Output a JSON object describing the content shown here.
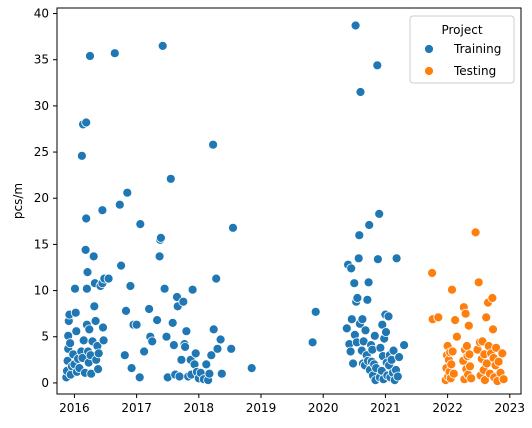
{
  "chart_data": {
    "type": "scatter",
    "title": "",
    "xlabel": "",
    "ylabel": "pcs/m",
    "xlim": [
      2015.72,
      2023.18
    ],
    "ylim": [
      -1.2,
      40.6
    ],
    "x_ticks": [
      2016,
      2017,
      2018,
      2019,
      2020,
      2021,
      2022,
      2023
    ],
    "x_tick_labels": [
      "2016",
      "2017",
      "2018",
      "2019",
      "2020",
      "2021",
      "2022",
      "2023"
    ],
    "y_ticks": [
      0,
      5,
      10,
      15,
      20,
      25,
      30,
      35,
      40
    ],
    "y_tick_labels": [
      "0",
      "5",
      "10",
      "15",
      "20",
      "25",
      "30",
      "35",
      "40"
    ],
    "grid": false,
    "legend": {
      "title": "Project",
      "placement": "top-right",
      "entries": [
        {
          "label": "Training",
          "color": "#1f77b4"
        },
        {
          "label": "Testing",
          "color": "#ff7f0e"
        }
      ]
    },
    "series": [
      {
        "name": "Training",
        "color": "#1f77b4",
        "points": [
          [
            2015.87,
            0.6
          ],
          [
            2015.88,
            1.3
          ],
          [
            2015.89,
            2.4
          ],
          [
            2015.9,
            3.7
          ],
          [
            2015.9,
            5.1
          ],
          [
            2015.91,
            6.7
          ],
          [
            2015.92,
            7.4
          ],
          [
            2015.93,
            4.3
          ],
          [
            2015.94,
            0.9
          ],
          [
            2015.96,
            1.8
          ],
          [
            2015.98,
            3.1
          ],
          [
            2016.0,
            2.0
          ],
          [
            2016.01,
            10.2
          ],
          [
            2016.02,
            7.6
          ],
          [
            2016.03,
            5.6
          ],
          [
            2016.04,
            1.2
          ],
          [
            2016.06,
            2.6
          ],
          [
            2016.08,
            1.6
          ],
          [
            2016.11,
            3.4
          ],
          [
            2016.12,
            24.6
          ],
          [
            2016.13,
            2.7
          ],
          [
            2016.14,
            28.0
          ],
          [
            2016.15,
            4.6
          ],
          [
            2016.17,
            1.1
          ],
          [
            2016.18,
            14.4
          ],
          [
            2016.19,
            17.8
          ],
          [
            2016.19,
            28.2
          ],
          [
            2016.2,
            10.2
          ],
          [
            2016.2,
            6.3
          ],
          [
            2016.21,
            12.0
          ],
          [
            2016.22,
            3.4
          ],
          [
            2016.23,
            2.2
          ],
          [
            2016.24,
            5.8
          ],
          [
            2016.25,
            35.4
          ],
          [
            2016.26,
            3.0
          ],
          [
            2016.27,
            1.0
          ],
          [
            2016.29,
            4.5
          ],
          [
            2016.31,
            13.7
          ],
          [
            2016.32,
            8.3
          ],
          [
            2016.33,
            10.8
          ],
          [
            2016.34,
            6.7
          ],
          [
            2016.35,
            2.5
          ],
          [
            2016.37,
            4.0
          ],
          [
            2016.38,
            1.5
          ],
          [
            2016.39,
            3.2
          ],
          [
            2016.42,
            10.5
          ],
          [
            2016.45,
            18.7
          ],
          [
            2016.45,
            10.8
          ],
          [
            2016.46,
            6.0
          ],
          [
            2016.47,
            4.6
          ],
          [
            2016.48,
            11.3
          ],
          [
            2016.55,
            11.3
          ],
          [
            2016.65,
            35.7
          ],
          [
            2016.73,
            19.3
          ],
          [
            2016.75,
            12.7
          ],
          [
            2016.81,
            3.0
          ],
          [
            2016.83,
            7.8
          ],
          [
            2016.85,
            20.6
          ],
          [
            2016.9,
            10.5
          ],
          [
            2016.92,
            1.6
          ],
          [
            2016.95,
            6.3
          ],
          [
            2017.0,
            6.3
          ],
          [
            2017.05,
            0.6
          ],
          [
            2017.06,
            17.2
          ],
          [
            2017.12,
            3.4
          ],
          [
            2017.2,
            8.0
          ],
          [
            2017.22,
            5.0
          ],
          [
            2017.25,
            4.5
          ],
          [
            2017.33,
            6.8
          ],
          [
            2017.37,
            13.7
          ],
          [
            2017.38,
            15.5
          ],
          [
            2017.39,
            15.7
          ],
          [
            2017.42,
            36.5
          ],
          [
            2017.45,
            10.2
          ],
          [
            2017.48,
            5.0
          ],
          [
            2017.5,
            0.6
          ],
          [
            2017.55,
            22.1
          ],
          [
            2017.58,
            6.5
          ],
          [
            2017.6,
            4.1
          ],
          [
            2017.62,
            0.9
          ],
          [
            2017.65,
            9.3
          ],
          [
            2017.66,
            8.3
          ],
          [
            2017.69,
            0.7
          ],
          [
            2017.72,
            2.5
          ],
          [
            2017.75,
            8.8
          ],
          [
            2017.77,
            4.2
          ],
          [
            2017.78,
            3.9
          ],
          [
            2017.8,
            5.6
          ],
          [
            2017.83,
            0.7
          ],
          [
            2017.87,
            2.5
          ],
          [
            2017.88,
            0.9
          ],
          [
            2017.9,
            10.1
          ],
          [
            2017.93,
            2.0
          ],
          [
            2017.95,
            3.2
          ],
          [
            2017.97,
            1.2
          ],
          [
            2018.0,
            0.5
          ],
          [
            2018.03,
            1.1
          ],
          [
            2018.08,
            0.4
          ],
          [
            2018.12,
            2.0
          ],
          [
            2018.15,
            0.3
          ],
          [
            2018.17,
            1.0
          ],
          [
            2018.2,
            3.0
          ],
          [
            2018.23,
            25.8
          ],
          [
            2018.24,
            5.8
          ],
          [
            2018.28,
            11.3
          ],
          [
            2018.3,
            3.7
          ],
          [
            2018.35,
            4.7
          ],
          [
            2018.37,
            1.0
          ],
          [
            2018.52,
            3.7
          ],
          [
            2018.55,
            16.8
          ],
          [
            2018.85,
            1.6
          ],
          [
            2019.83,
            4.4
          ],
          [
            2019.88,
            7.7
          ],
          [
            2020.38,
            5.9
          ],
          [
            2020.4,
            12.8
          ],
          [
            2020.42,
            4.2
          ],
          [
            2020.44,
            3.4
          ],
          [
            2020.45,
            12.4
          ],
          [
            2020.46,
            6.9
          ],
          [
            2020.48,
            2.1
          ],
          [
            2020.5,
            10.8
          ],
          [
            2020.51,
            5.2
          ],
          [
            2020.52,
            38.7
          ],
          [
            2020.53,
            8.8
          ],
          [
            2020.54,
            4.4
          ],
          [
            2020.55,
            9.2
          ],
          [
            2020.57,
            13.5
          ],
          [
            2020.58,
            16.0
          ],
          [
            2020.59,
            6.4
          ],
          [
            2020.6,
            31.5
          ],
          [
            2020.62,
            3.5
          ],
          [
            2020.63,
            6.9
          ],
          [
            2020.64,
            2.1
          ],
          [
            2020.65,
            4.5
          ],
          [
            2020.67,
            1.9
          ],
          [
            2020.68,
            5.7
          ],
          [
            2020.7,
            3.0
          ],
          [
            2020.71,
            9.0
          ],
          [
            2020.72,
            2.4
          ],
          [
            2020.73,
            10.9
          ],
          [
            2020.74,
            17.1
          ],
          [
            2020.75,
            1.4
          ],
          [
            2020.77,
            4.1
          ],
          [
            2020.78,
            2.3
          ],
          [
            2020.79,
            3.6
          ],
          [
            2020.8,
            0.8
          ],
          [
            2020.82,
            2.0
          ],
          [
            2020.83,
            5.1
          ],
          [
            2020.84,
            0.3
          ],
          [
            2020.85,
            1.6
          ],
          [
            2020.87,
            34.4
          ],
          [
            2020.88,
            13.4
          ],
          [
            2020.9,
            18.3
          ],
          [
            2020.91,
            0.6
          ],
          [
            2020.92,
            3.8
          ],
          [
            2020.94,
            1.3
          ],
          [
            2020.95,
            6.3
          ],
          [
            2020.96,
            2.9
          ],
          [
            2020.97,
            0.4
          ],
          [
            2020.98,
            4.8
          ],
          [
            2021.0,
            7.4
          ],
          [
            2021.01,
            5.5
          ],
          [
            2021.02,
            2.2
          ],
          [
            2021.03,
            0.8
          ],
          [
            2021.05,
            7.2
          ],
          [
            2021.06,
            1.9
          ],
          [
            2021.07,
            3.0
          ],
          [
            2021.08,
            0.6
          ],
          [
            2021.1,
            2.5
          ],
          [
            2021.12,
            1.1
          ],
          [
            2021.13,
            3.5
          ],
          [
            2021.15,
            0.3
          ],
          [
            2021.17,
            1.4
          ],
          [
            2021.18,
            13.5
          ],
          [
            2021.2,
            0.7
          ],
          [
            2021.22,
            2.8
          ],
          [
            2021.3,
            4.1
          ]
        ]
      },
      {
        "name": "Testing",
        "color": "#ff7f0e",
        "points": [
          [
            2021.75,
            11.9
          ],
          [
            2021.76,
            6.9
          ],
          [
            2021.85,
            7.1
          ],
          [
            2021.97,
            0.3
          ],
          [
            2021.98,
            1.6
          ],
          [
            2021.99,
            3.0
          ],
          [
            2022.0,
            4.0
          ],
          [
            2022.01,
            0.7
          ],
          [
            2022.02,
            2.5
          ],
          [
            2022.03,
            1.2
          ],
          [
            2022.04,
            3.3
          ],
          [
            2022.05,
            0.5
          ],
          [
            2022.06,
            2.0
          ],
          [
            2022.07,
            10.1
          ],
          [
            2022.08,
            3.4
          ],
          [
            2022.1,
            1.0
          ],
          [
            2022.12,
            6.8
          ],
          [
            2022.15,
            5.0
          ],
          [
            2022.25,
            2.4
          ],
          [
            2022.26,
            8.2
          ],
          [
            2022.27,
            0.4
          ],
          [
            2022.28,
            3.6
          ],
          [
            2022.29,
            7.5
          ],
          [
            2022.3,
            1.5
          ],
          [
            2022.31,
            4.0
          ],
          [
            2022.32,
            2.9
          ],
          [
            2022.33,
            0.9
          ],
          [
            2022.34,
            6.2
          ],
          [
            2022.35,
            3.1
          ],
          [
            2022.36,
            1.8
          ],
          [
            2022.38,
            0.5
          ],
          [
            2022.45,
            16.3
          ],
          [
            2022.48,
            3.6
          ],
          [
            2022.5,
            10.9
          ],
          [
            2022.52,
            4.4
          ],
          [
            2022.53,
            0.8
          ],
          [
            2022.55,
            2.6
          ],
          [
            2022.56,
            4.5
          ],
          [
            2022.58,
            1.4
          ],
          [
            2022.59,
            3.1
          ],
          [
            2022.6,
            0.3
          ],
          [
            2022.62,
            7.1
          ],
          [
            2022.63,
            2.1
          ],
          [
            2022.65,
            8.7
          ],
          [
            2022.66,
            4.0
          ],
          [
            2022.68,
            1.0
          ],
          [
            2022.7,
            3.2
          ],
          [
            2022.72,
            9.2
          ],
          [
            2022.73,
            5.8
          ],
          [
            2022.74,
            2.7
          ],
          [
            2022.75,
            0.6
          ],
          [
            2022.77,
            1.9
          ],
          [
            2022.78,
            3.8
          ],
          [
            2022.8,
            0.2
          ],
          [
            2022.82,
            2.3
          ],
          [
            2022.85,
            1.1
          ],
          [
            2022.88,
            3.2
          ],
          [
            2022.9,
            0.4
          ]
        ]
      }
    ]
  }
}
